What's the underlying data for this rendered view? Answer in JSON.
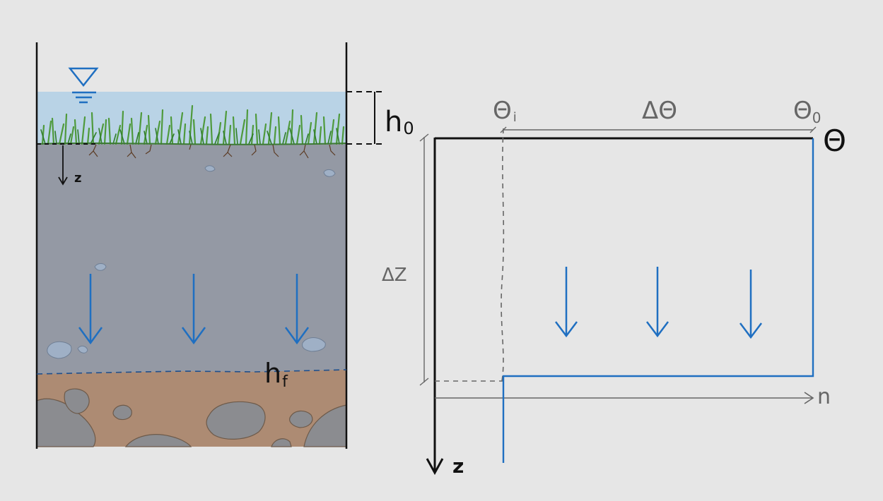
{
  "colors": {
    "background": "#e6e6e6",
    "water": "#b9d3e6",
    "wetted_soil": "#9499a4",
    "dry_soil": "#ad8b73",
    "rock": "#8b8c90",
    "grass": "#4f9a3c",
    "root": "#5b3a22",
    "flow_blue": "#1f6fc1",
    "ink": "#111111",
    "gray_line": "#666666"
  },
  "icons": {
    "water_surface": "inverted-triangle-water-level-icon",
    "flow": "down-arrow-icon"
  },
  "left_panel": {
    "h0_label": "h",
    "h0_subscript": "0",
    "hf_label": "h",
    "hf_subscript": "f",
    "depth_axis_label": "z"
  },
  "right_panel": {
    "theta_i_label": "Θ",
    "theta_i_subscript": "i",
    "theta_0_label": "Θ",
    "theta_0_subscript": "0",
    "delta_theta_label": "ΔΘ",
    "theta_axis_label": "Θ",
    "delta_z_label": "ΔZ",
    "n_label": "n",
    "z_axis_label": "z"
  }
}
